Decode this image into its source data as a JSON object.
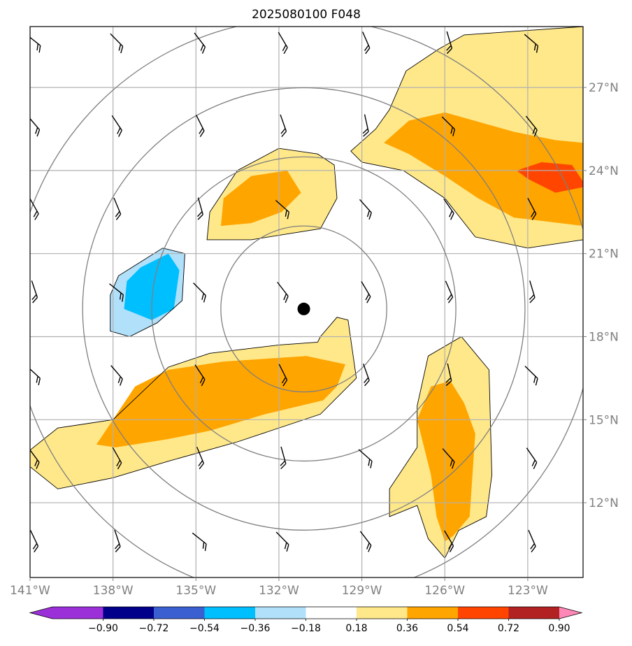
{
  "chart_data": {
    "type": "heatmap",
    "title": "2025080100 F048",
    "lon_range": [
      -141,
      -121
    ],
    "lat_range": [
      9.3,
      29.2
    ],
    "x_tick_labels": [
      "141°W",
      "138°W",
      "135°W",
      "132°W",
      "129°W",
      "126°W",
      "123°W"
    ],
    "y_tick_labels": [
      "27°N",
      "24°N",
      "21°N",
      "18°N",
      "15°N",
      "12°N"
    ],
    "grid": true,
    "storm_center": {
      "lon": -131.1,
      "lat": 19.0
    },
    "range_rings_deg": [
      3,
      5.5,
      8,
      10.5
    ],
    "colorbar": {
      "orientation": "horizontal",
      "position": "bottom",
      "extend": "both",
      "levels": [
        "−0.90",
        "−0.72",
        "−0.54",
        "−0.36",
        "−0.18",
        "0.18",
        "0.36",
        "0.54",
        "0.72",
        "0.90"
      ],
      "colors": [
        "#9b30d9",
        "#00008b",
        "#3a5fd0",
        "#00bfff",
        "#b0e0fa",
        "#ffffff",
        "#ffe88a",
        "#ffa500",
        "#ff4500",
        "#b22222",
        "#ff88b8"
      ]
    },
    "filled_regions": [
      {
        "level": "0.18-0.36",
        "color": "#ffe88a",
        "polygon": [
          [
            -141,
            13.9
          ],
          [
            -140,
            14.7
          ],
          [
            -138,
            15.0
          ],
          [
            -136,
            16.9
          ],
          [
            -134.5,
            17.4
          ],
          [
            -132,
            17.7
          ],
          [
            -130.6,
            17.8
          ],
          [
            -130.5,
            18.0
          ],
          [
            -129.9,
            18.7
          ],
          [
            -129.5,
            18.6
          ],
          [
            -129.2,
            16.5
          ],
          [
            -130.5,
            15.2
          ],
          [
            -133.5,
            14.2
          ],
          [
            -136,
            13.5
          ],
          [
            -138,
            12.9
          ],
          [
            -140,
            12.5
          ],
          [
            -141,
            13.3
          ]
        ]
      },
      {
        "level": "0.36-0.54",
        "color": "#ffa500",
        "polygon": [
          [
            -138.6,
            14.1
          ],
          [
            -137.2,
            16.2
          ],
          [
            -136,
            16.8
          ],
          [
            -134,
            17.1
          ],
          [
            -131,
            17.3
          ],
          [
            -129.6,
            17.0
          ],
          [
            -129.9,
            16.2
          ],
          [
            -130.4,
            15.7
          ],
          [
            -132.5,
            15.2
          ],
          [
            -134.5,
            14.6
          ],
          [
            -136,
            14.3
          ],
          [
            -137.9,
            14.0
          ]
        ]
      },
      {
        "level": "0.18-0.36",
        "color": "#ffe88a",
        "polygon": [
          [
            -134.6,
            21.5
          ],
          [
            -134.5,
            22.5
          ],
          [
            -133.5,
            24.0
          ],
          [
            -132,
            24.8
          ],
          [
            -130.6,
            24.6
          ],
          [
            -130,
            24.2
          ],
          [
            -129.9,
            23.0
          ],
          [
            -130.5,
            21.9
          ],
          [
            -133,
            21.5
          ]
        ]
      },
      {
        "level": "0.36-0.54",
        "color": "#ffa500",
        "polygon": [
          [
            -134.1,
            22.0
          ],
          [
            -134,
            23.0
          ],
          [
            -133.0,
            23.8
          ],
          [
            -131.7,
            24.0
          ],
          [
            -131.2,
            23.2
          ],
          [
            -131.9,
            22.5
          ],
          [
            -133.0,
            22.1
          ]
        ]
      },
      {
        "level": "0.18-0.36",
        "color": "#ffe88a",
        "polygon": [
          [
            -129.4,
            24.7
          ],
          [
            -128.5,
            25.5
          ],
          [
            -128.0,
            26.2
          ],
          [
            -127.4,
            27.6
          ],
          [
            -126.2,
            28.4
          ],
          [
            -125.3,
            28.9
          ],
          [
            -121,
            29.2
          ],
          [
            -121,
            21.5
          ],
          [
            -123.0,
            21.2
          ],
          [
            -124.9,
            21.6
          ],
          [
            -126.0,
            23.0
          ],
          [
            -127.5,
            24.0
          ],
          [
            -129.0,
            24.3
          ]
        ]
      },
      {
        "level": "0.36-0.54",
        "color": "#ffa500",
        "polygon": [
          [
            -128.2,
            25.0
          ],
          [
            -127.3,
            25.8
          ],
          [
            -126.0,
            26.1
          ],
          [
            -123.5,
            25.4
          ],
          [
            -122.0,
            25.1
          ],
          [
            -121,
            25.0
          ],
          [
            -121,
            22.0
          ],
          [
            -123.5,
            22.3
          ],
          [
            -124.8,
            23.0
          ],
          [
            -126.0,
            23.8
          ],
          [
            -127.3,
            24.6
          ]
        ]
      },
      {
        "level": "0.54-0.72",
        "color": "#ff4500",
        "polygon": [
          [
            -123.4,
            24.0
          ],
          [
            -122.5,
            24.3
          ],
          [
            -121.4,
            24.2
          ],
          [
            -121,
            23.6
          ],
          [
            -121,
            23.4
          ],
          [
            -122.0,
            23.2
          ],
          [
            -123.0,
            23.7
          ]
        ]
      },
      {
        "level": "0.18-0.36",
        "color": "#ffe88a",
        "polygon": [
          [
            -126.6,
            17.3
          ],
          [
            -125.4,
            18.0
          ],
          [
            -124.4,
            16.8
          ],
          [
            -124.3,
            13.0
          ],
          [
            -124.5,
            11.5
          ],
          [
            -125.5,
            11.0
          ],
          [
            -126.0,
            10.0
          ],
          [
            -126.6,
            10.7
          ],
          [
            -127.0,
            11.9
          ],
          [
            -128.0,
            11.5
          ],
          [
            -128.0,
            12.5
          ],
          [
            -127.0,
            14.0
          ],
          [
            -127.0,
            15.5
          ]
        ]
      },
      {
        "level": "0.36-0.54",
        "color": "#ffa500",
        "polygon": [
          [
            -126.5,
            16.2
          ],
          [
            -125.8,
            16.4
          ],
          [
            -125.3,
            15.6
          ],
          [
            -124.9,
            14.5
          ],
          [
            -125.0,
            13.0
          ],
          [
            -125.1,
            11.5
          ],
          [
            -125.7,
            10.8
          ],
          [
            -126.0,
            10.6
          ],
          [
            -126.3,
            11.5
          ],
          [
            -126.5,
            13.0
          ],
          [
            -127.0,
            15.0
          ]
        ]
      },
      {
        "level": "−0.36--0.18",
        "color": "#b0e0fa",
        "polygon": [
          [
            -138.1,
            18.2
          ],
          [
            -137.4,
            18.0
          ],
          [
            -136.4,
            18.5
          ],
          [
            -135.5,
            19.3
          ],
          [
            -135.4,
            21.0
          ],
          [
            -136.2,
            21.2
          ],
          [
            -137.0,
            20.7
          ],
          [
            -137.8,
            20.2
          ],
          [
            -138.1,
            19.5
          ]
        ]
      },
      {
        "level": "−0.54--0.36",
        "color": "#00bfff",
        "polygon": [
          [
            -137.6,
            19.0
          ],
          [
            -136.6,
            18.6
          ],
          [
            -135.8,
            19.0
          ],
          [
            -135.6,
            20.4
          ],
          [
            -136.0,
            21.0
          ],
          [
            -137.0,
            20.5
          ],
          [
            -137.5,
            20.0
          ]
        ]
      }
    ]
  }
}
